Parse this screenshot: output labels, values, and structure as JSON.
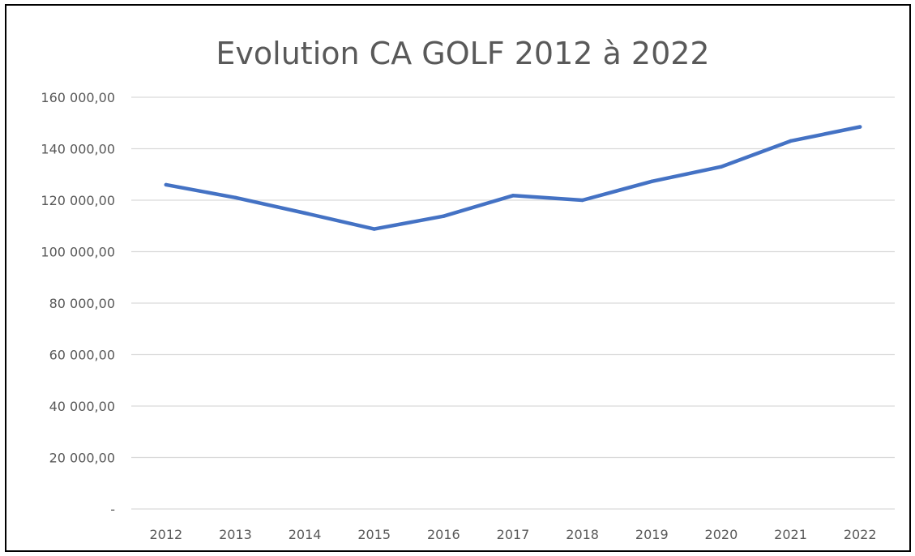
{
  "chart_data": {
    "type": "line",
    "title": "Evolution CA GOLF 2012 à 2022",
    "xlabel": "",
    "ylabel": "",
    "categories": [
      "2012",
      "2013",
      "2014",
      "2015",
      "2016",
      "2017",
      "2018",
      "2019",
      "2020",
      "2021",
      "2022"
    ],
    "series": [
      {
        "values": [
          126000,
          121000,
          115000,
          108800,
          113800,
          121800,
          120000,
          127300,
          133000,
          143000,
          148500
        ]
      }
    ],
    "ylim": [
      0,
      160000
    ],
    "yticks": [
      0,
      20000,
      40000,
      60000,
      80000,
      100000,
      120000,
      140000,
      160000
    ],
    "ytick_labels": [
      "-",
      "20 000,00",
      "40 000,00",
      "60 000,00",
      "80 000,00",
      "100 000,00",
      "120 000,00",
      "140 000,00",
      "160 000,00"
    ],
    "grid": true,
    "legend": "none",
    "colors": {
      "line": "#4472C4",
      "grid": "#D9D9D9",
      "text": "#595959",
      "title": "#595959",
      "frame": "#000000"
    }
  }
}
